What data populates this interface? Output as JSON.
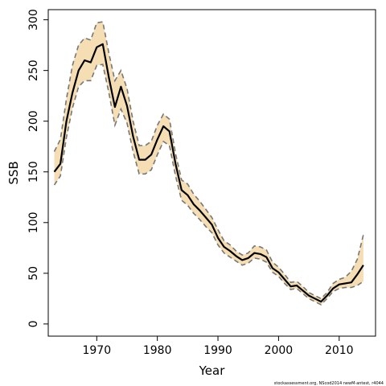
{
  "chart_data": {
    "type": "line",
    "xlabel": "Year",
    "ylabel": "SSB",
    "xlim": [
      1962,
      2016
    ],
    "ylim": [
      -12,
      310
    ],
    "x_ticks": [
      1970,
      1980,
      1990,
      2000,
      2010
    ],
    "y_ticks": [
      0,
      50,
      100,
      150,
      200,
      250,
      300
    ],
    "grid": false,
    "band_color": "#f5deb3",
    "line_color": "#000000",
    "bound_color": "#777777",
    "footnote": "stockassessment.org, NScod2014 newM-antest, r4044",
    "x": [
      1963,
      1964,
      1965,
      1966,
      1967,
      1968,
      1969,
      1970,
      1971,
      1972,
      1973,
      1974,
      1975,
      1976,
      1977,
      1978,
      1979,
      1980,
      1981,
      1982,
      1983,
      1984,
      1985,
      1986,
      1987,
      1988,
      1989,
      1990,
      1991,
      1992,
      1993,
      1994,
      1995,
      1996,
      1997,
      1998,
      1999,
      2000,
      2001,
      2002,
      2003,
      2004,
      2005,
      2006,
      2007,
      2008,
      2009,
      2010,
      2011,
      2012,
      2013,
      2014
    ],
    "series": [
      {
        "role": "estimate",
        "values": [
          150,
          158,
          200,
          228,
          250,
          260,
          258,
          273,
          276,
          243,
          214,
          234,
          215,
          185,
          162,
          162,
          167,
          182,
          195,
          190,
          158,
          132,
          127,
          118,
          112,
          105,
          98,
          85,
          76,
          72,
          67,
          63,
          65,
          70,
          69,
          66,
          55,
          51,
          44,
          37,
          38,
          33,
          28,
          25,
          22,
          28,
          35,
          39,
          40,
          41,
          49,
          58
        ]
      },
      {
        "role": "upper",
        "values": [
          170,
          182,
          222,
          255,
          275,
          282,
          280,
          297,
          298,
          267,
          240,
          250,
          232,
          200,
          176,
          176,
          180,
          196,
          207,
          202,
          168,
          142,
          138,
          128,
          121,
          113,
          105,
          93,
          82,
          78,
          72,
          68,
          70,
          77,
          76,
          73,
          61,
          56,
          49,
          41,
          42,
          37,
          31,
          28,
          25,
          31,
          40,
          44,
          46,
          52,
          64,
          88
        ]
      },
      {
        "role": "lower",
        "values": [
          137,
          146,
          184,
          213,
          234,
          240,
          240,
          255,
          256,
          228,
          196,
          212,
          198,
          170,
          148,
          148,
          152,
          167,
          180,
          176,
          146,
          122,
          117,
          109,
          103,
          96,
          90,
          78,
          70,
          66,
          62,
          58,
          60,
          65,
          64,
          61,
          51,
          47,
          40,
          34,
          35,
          30,
          25,
          22,
          19,
          25,
          32,
          35,
          36,
          36,
          38,
          42
        ]
      }
    ]
  }
}
